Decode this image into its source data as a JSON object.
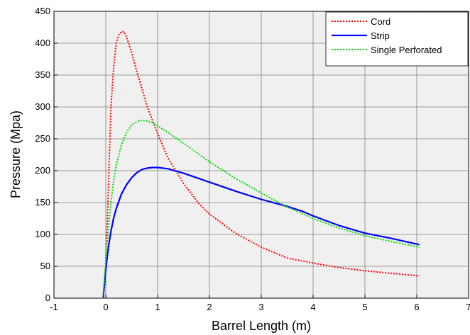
{
  "chart_data": {
    "type": "line",
    "xlabel": "Barrel Length (m)",
    "ylabel": "Pressure (Mpa)",
    "xlim": [
      -1,
      7
    ],
    "ylim": [
      0,
      450
    ],
    "xticks": [
      "-1",
      "0",
      "1",
      "2",
      "3",
      "4",
      "5",
      "6",
      "7"
    ],
    "yticks": [
      "0",
      "50",
      "100",
      "150",
      "200",
      "250",
      "300",
      "350",
      "400",
      "450"
    ],
    "grid": true,
    "legend_position": "top-right",
    "background": "#f0f0f0",
    "series": [
      {
        "name": "Cord",
        "color": "#ff0000",
        "style": "dotted",
        "x": [
          -0.05,
          -0.02,
          0.0,
          0.03,
          0.06,
          0.1,
          0.15,
          0.2,
          0.25,
          0.3,
          0.35,
          0.4,
          0.5,
          0.6,
          0.7,
          0.8,
          1.0,
          1.2,
          1.5,
          1.8,
          2.0,
          2.5,
          3.0,
          3.5,
          4.0,
          4.5,
          5.0,
          5.5,
          6.05
        ],
        "y": [
          0,
          20,
          60,
          120,
          200,
          300,
          360,
          400,
          413,
          418,
          418,
          410,
          385,
          355,
          328,
          300,
          258,
          220,
          180,
          148,
          132,
          102,
          80,
          63,
          55,
          48,
          43,
          39,
          35
        ]
      },
      {
        "name": "Strip",
        "color": "#0000ff",
        "style": "solid",
        "x": [
          -0.05,
          0.0,
          0.05,
          0.1,
          0.15,
          0.2,
          0.3,
          0.4,
          0.5,
          0.6,
          0.7,
          0.8,
          0.9,
          1.0,
          1.2,
          1.5,
          2.0,
          2.5,
          3.0,
          3.5,
          3.8,
          4.0,
          4.5,
          5.0,
          5.5,
          6.05
        ],
        "y": [
          0,
          45,
          80,
          105,
          125,
          140,
          163,
          178,
          189,
          197,
          202,
          204,
          205,
          205,
          203,
          196,
          182,
          168,
          155,
          144,
          136,
          129,
          114,
          102,
          94,
          84
        ]
      },
      {
        "name": "Single Perforated",
        "color": "#00dd00",
        "style": "dotted",
        "x": [
          -0.05,
          0.0,
          0.05,
          0.1,
          0.15,
          0.2,
          0.3,
          0.4,
          0.5,
          0.6,
          0.7,
          0.8,
          0.9,
          1.0,
          1.2,
          1.5,
          2.0,
          2.5,
          3.0,
          3.5,
          4.0,
          4.5,
          5.0,
          5.5,
          6.05
        ],
        "y": [
          0,
          60,
          110,
          150,
          183,
          208,
          240,
          260,
          272,
          277,
          279,
          278,
          275,
          270,
          260,
          243,
          214,
          188,
          165,
          143,
          125,
          110,
          98,
          89,
          80
        ]
      }
    ]
  }
}
